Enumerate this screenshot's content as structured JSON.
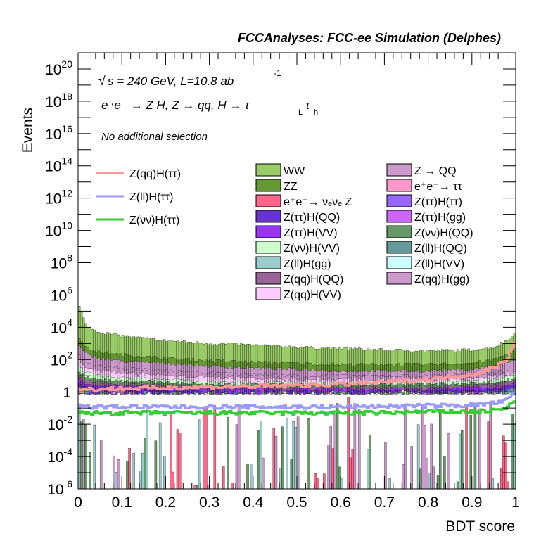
{
  "header": {
    "title": "FCCAnalyses: FCC-ee Simulation (Delphes)"
  },
  "annotations": {
    "energy_prefix": "s = 240 GeV, L=10.8 ab",
    "energy_sqrt_symbol": "√",
    "lumi_exponent": "-1",
    "process": "e⁺e⁻ → Z H, Z → qq, H → τ",
    "process_sub_L": "L",
    "process_tau2": "τ",
    "process_sub_h": "h",
    "selection": "No additional selection"
  },
  "chart_data": {
    "type": "area",
    "xlabel": "BDT score",
    "ylabel": "Events",
    "xlim": [
      0,
      1
    ],
    "ylim": [
      1e-06,
      1e+21
    ],
    "yscale": "log",
    "grid": false,
    "legend_placement": "top",
    "xticks": [
      "0",
      "0.1",
      "0.2",
      "0.3",
      "0.4",
      "0.5",
      "0.6",
      "0.7",
      "0.8",
      "0.9",
      "1"
    ],
    "yticks": [
      {
        "exp": "-6",
        "mant": "10",
        "value": 1e-06
      },
      {
        "exp": "-4",
        "mant": "10",
        "value": 0.0001
      },
      {
        "exp": "-2",
        "mant": "10",
        "value": 0.01
      },
      {
        "exp": "",
        "mant": "1",
        "value": 1
      },
      {
        "exp": "2",
        "mant": "10",
        "value": 100.0
      },
      {
        "exp": "4",
        "mant": "10",
        "value": 10000.0
      },
      {
        "exp": "6",
        "mant": "10",
        "value": 1000000.0
      },
      {
        "exp": "8",
        "mant": "10",
        "value": 100000000.0
      },
      {
        "exp": "10",
        "mant": "10",
        "value": 10000000000.0
      },
      {
        "exp": "12",
        "mant": "10",
        "value": 1000000000000.0
      },
      {
        "exp": "14",
        "mant": "10",
        "value": 100000000000000.0
      },
      {
        "exp": "16",
        "mant": "10",
        "value": 1e+16
      },
      {
        "exp": "18",
        "mant": "10",
        "value": 1e+18
      },
      {
        "exp": "20",
        "mant": "10",
        "value": 1e+20
      }
    ],
    "x": [
      0.0,
      0.02,
      0.05,
      0.1,
      0.2,
      0.3,
      0.4,
      0.5,
      0.6,
      0.7,
      0.8,
      0.9,
      0.95,
      0.98,
      1.0
    ],
    "stacked_totals": [
      {
        "name": "WW",
        "color": "#99cc66",
        "values": [
          300000.0,
          10000.0,
          5000.0,
          3000.0,
          1500.0,
          1000.0,
          800.0,
          600.0,
          500.0,
          400.0,
          350.0,
          400.0,
          600.0,
          1500.0,
          5000.0
        ]
      },
      {
        "name": "ZZ",
        "color": "#669933",
        "values": [
          3000.0,
          500.0,
          300.0,
          200.0,
          120.0,
          90.0,
          70.0,
          60.0,
          50.0,
          50.0,
          50.0,
          60.0,
          100.0,
          200.0,
          500.0
        ]
      },
      {
        "name": "Z → QQ",
        "color": "#cc99cc",
        "values": [
          800.0,
          200.0,
          120.0,
          80.0,
          60.0,
          40.0,
          30.0,
          25.0,
          20.0,
          20.0,
          20.0,
          25.0,
          40.0,
          60.0,
          100.0
        ]
      },
      {
        "name": "Z(qq)H(gg)",
        "color": "#cc99cc",
        "values": [
          200.0,
          60.0,
          40.0,
          30.0,
          20.0,
          15.0,
          12.0,
          10.0,
          10.0,
          10.0,
          10.0,
          12.0,
          15.0,
          20.0,
          30.0
        ]
      },
      {
        "name": "Z(qq)H(VV)",
        "color": "#ffccff",
        "values": [
          100.0,
          30.0,
          20.0,
          15.0,
          10.0,
          8,
          7,
          6,
          6,
          6,
          6,
          7,
          9,
          12.0,
          20.0
        ]
      },
      {
        "name": "Z(νν)H(VV)",
        "color": "#ccffcc",
        "values": [
          40.0,
          15.0,
          10.0,
          8,
          6,
          5,
          4,
          4,
          4,
          4,
          4,
          5,
          6,
          8,
          12.0
        ]
      },
      {
        "name": "Z(νν)H(QQ)",
        "color": "#669966",
        "values": [
          20.0,
          8,
          6,
          5,
          4,
          3,
          3,
          3,
          3,
          3,
          3,
          3.5,
          4,
          5,
          8
        ]
      },
      {
        "name": "Z(qq)H(QQ)",
        "color": "#996699",
        "values": [
          10.0,
          5,
          4,
          3,
          2.5,
          2,
          2,
          2,
          2,
          2,
          2,
          2.5,
          3,
          4,
          6
        ]
      },
      {
        "name": "Z(ττ)H(VV)",
        "color": "#9933ff",
        "values": [
          6,
          3,
          2.5,
          2,
          1.8,
          1.5,
          1.5,
          1.5,
          1.5,
          1.5,
          1.5,
          1.8,
          2,
          2.5,
          4
        ]
      },
      {
        "name": "Z(ττ)H(QQ)",
        "color": "#6633cc",
        "values": [
          4,
          2,
          1.8,
          1.5,
          1.3,
          1.2,
          1.1,
          1.1,
          1.1,
          1.1,
          1.1,
          1.3,
          1.5,
          2,
          3
        ]
      },
      {
        "name": "Z(ll)H(QQ)",
        "color": "#669999",
        "values": [
          2.5,
          1.5,
          1.2,
          1,
          0.9,
          0.8,
          0.8,
          0.8,
          0.8,
          0.8,
          0.8,
          0.9,
          1,
          1.2,
          2
        ]
      }
    ],
    "signal_lines": [
      {
        "name": "Z(qq)H(ττ)",
        "color": "#ff9999",
        "values": [
          1.2,
          1.5,
          1.5,
          1.6,
          1.8,
          2.0,
          2.2,
          2.5,
          3.0,
          4.0,
          6.0,
          12.0,
          30.0,
          100.0,
          2000.0
        ]
      },
      {
        "name": "Z(ll)H(ττ)",
        "color": "#9999ff",
        "values": [
          0.15,
          0.12,
          0.12,
          0.12,
          0.12,
          0.12,
          0.12,
          0.12,
          0.12,
          0.13,
          0.14,
          0.15,
          0.2,
          0.3,
          1.0
        ]
      },
      {
        "name": "Z(νν)H(ττ)",
        "color": "#33cc33",
        "values": [
          0.05,
          0.05,
          0.05,
          0.05,
          0.05,
          0.05,
          0.05,
          0.05,
          0.05,
          0.05,
          0.06,
          0.06,
          0.07,
          0.1,
          0.3
        ]
      }
    ],
    "legend_lines": [
      {
        "label": "Z(qq)H(ττ)",
        "color": "#ff9999"
      },
      {
        "label": "Z(ll)H(ττ)",
        "color": "#9999ff"
      },
      {
        "label": "Z(νν)H(ττ)",
        "color": "#33cc33"
      }
    ],
    "legend_col1": [
      {
        "label": "WW",
        "color": "#99cc66"
      },
      {
        "label": "ZZ",
        "color": "#669933"
      },
      {
        "label": "e⁺e⁻→ νₑνₑ Z",
        "color": "#ff6688"
      },
      {
        "label": "Z(ττ)H(QQ)",
        "color": "#6633cc"
      },
      {
        "label": "Z(ττ)H(VV)",
        "color": "#9933ff"
      },
      {
        "label": "Z(νν)H(VV)",
        "color": "#ccffcc"
      },
      {
        "label": "Z(ll)H(gg)",
        "color": "#99cccc"
      },
      {
        "label": "Z(qq)H(QQ)",
        "color": "#996699"
      },
      {
        "label": "Z(qq)H(VV)",
        "color": "#ffccff"
      }
    ],
    "legend_col2": [
      {
        "label": "Z → QQ",
        "color": "#cc99cc"
      },
      {
        "label": "e⁺e⁻→ ττ",
        "color": "#ff99cc"
      },
      {
        "label": "Z(ττ)H(ττ)",
        "color": "#9966ff"
      },
      {
        "label": "Z(ττ)H(gg)",
        "color": "#cc66ff"
      },
      {
        "label": "Z(νν)H(QQ)",
        "color": "#669966"
      },
      {
        "label": "Z(ll)H(QQ)",
        "color": "#669999"
      },
      {
        "label": "Z(ll)H(VV)",
        "color": "#ccffff"
      },
      {
        "label": "Z(qq)H(gg)",
        "color": "#cc99cc"
      }
    ],
    "low_fill_colors": [
      "#ff6688",
      "#99cccc",
      "#669966",
      "#cc99cc"
    ]
  }
}
